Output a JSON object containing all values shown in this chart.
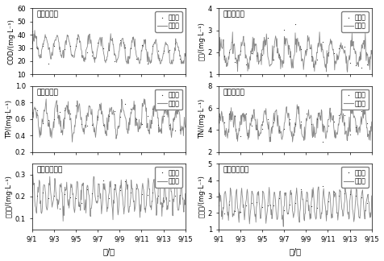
{
  "title": "",
  "subplots": [
    {
      "station": "深圳河口站",
      "ylabel": "COD/(mg·L⁻¹)",
      "ylim": [
        10,
        60
      ],
      "yticks": [
        10,
        20,
        30,
        40,
        50,
        60
      ],
      "row": 0,
      "col": 0
    },
    {
      "station": "深圳河口站",
      "ylabel": "氨氮/(mg·L⁻¹)",
      "ylim": [
        1,
        4
      ],
      "yticks": [
        1,
        2,
        3,
        4
      ],
      "row": 0,
      "col": 1
    },
    {
      "station": "深圳河口站",
      "ylabel": "TP/(mg·L⁻¹)",
      "ylim": [
        0.2,
        1.0
      ],
      "yticks": [
        0.2,
        0.4,
        0.6,
        0.8,
        1.0
      ],
      "row": 1,
      "col": 0
    },
    {
      "station": "深圳河口站",
      "ylabel": "TN/(mg·L⁻¹)",
      "ylim": [
        2,
        8
      ],
      "yticks": [
        2,
        4,
        6,
        8
      ],
      "row": 1,
      "col": 1
    },
    {
      "station": "深圳湾浮标站",
      "ylabel": "磷酸盐/(mg·L⁻¹)",
      "ylim": [
        0.05,
        0.35
      ],
      "yticks": [
        0.1,
        0.2,
        0.3
      ],
      "row": 2,
      "col": 0
    },
    {
      "station": "深圳湾浮标站",
      "ylabel": "无机氮/(mg·L⁻¹)",
      "ylim": [
        1,
        5
      ],
      "yticks": [
        1,
        2,
        3,
        4,
        5
      ],
      "row": 2,
      "col": 1
    }
  ],
  "xlabel": "月/日",
  "xtick_labels": [
    "9/1",
    "9/3",
    "9/5",
    "9/7",
    "9/9",
    "9/11",
    "9/13",
    "9/15"
  ],
  "legend_obs": "监测值",
  "legend_sim": "模拟值",
  "line_color": "#888888",
  "dot_color": "#333333",
  "bg_color": "#ffffff",
  "font_size": 7,
  "title_font_size": 7
}
